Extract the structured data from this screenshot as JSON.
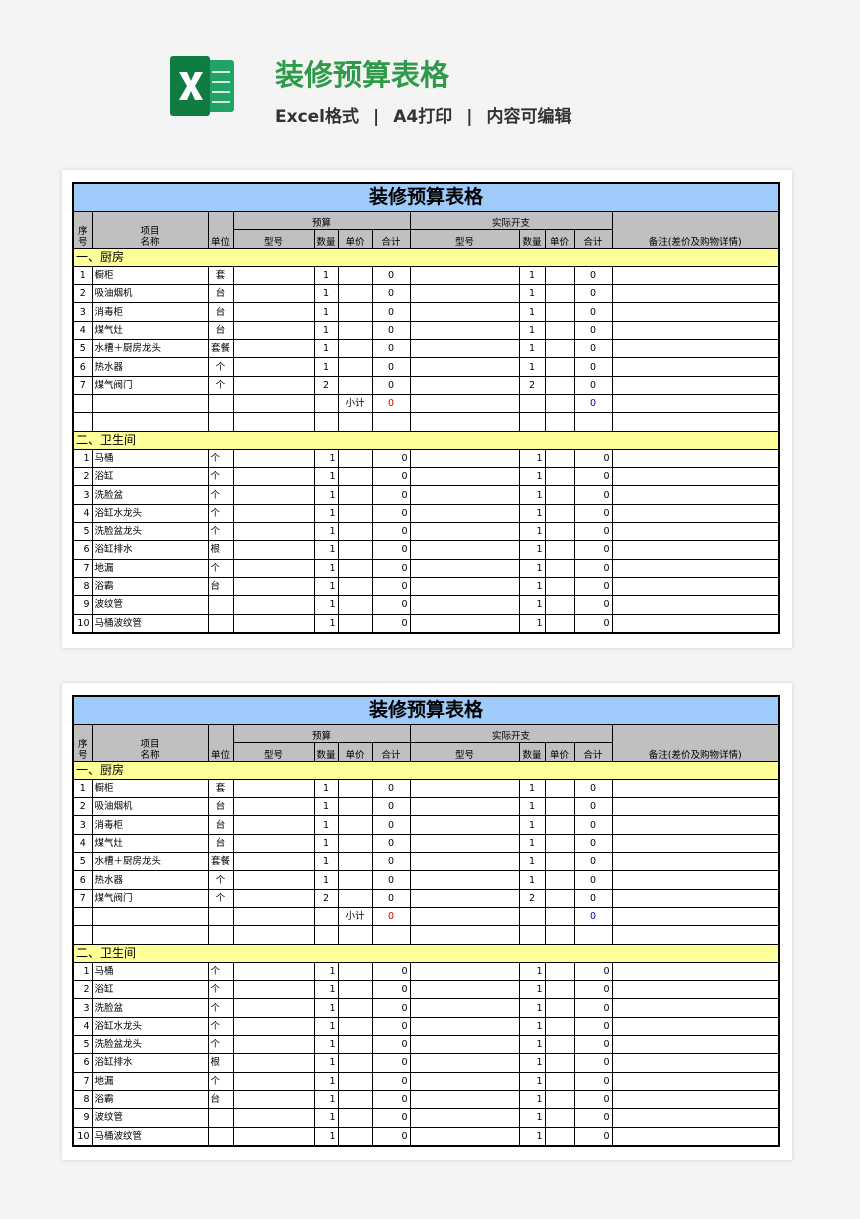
{
  "header": {
    "title": "装修预算表格",
    "tags": [
      "Excel格式",
      "A4打印",
      "内容可编辑"
    ],
    "separator": "|"
  },
  "sheets": [
    {
      "title": "装修预算表格",
      "header": {
        "seq": "序号",
        "item": [
          "项目",
          "名称"
        ],
        "unit": "单位",
        "budget": "预算",
        "actual": "实际开支",
        "notes": "备注(差价及购物详情)",
        "sub": [
          "型号",
          "数量",
          "单价",
          "合计",
          "型号",
          "数量",
          "单价",
          "合计"
        ]
      },
      "sections": [
        {
          "title": "一、厨房",
          "rows": [
            [
              1,
              "橱柜",
              "套",
              1,
              0,
              1,
              0
            ],
            [
              2,
              "吸油烟机",
              "台",
              1,
              0,
              1,
              0
            ],
            [
              3,
              "消毒柜",
              "台",
              1,
              0,
              1,
              0
            ],
            [
              4,
              "煤气灶",
              "台",
              1,
              0,
              1,
              0
            ],
            [
              5,
              "水槽＋厨房龙头",
              "套餐",
              1,
              0,
              1,
              0
            ],
            [
              6,
              "热水器",
              "个",
              1,
              0,
              1,
              0
            ],
            [
              7,
              "煤气阀门",
              "个",
              2,
              0,
              2,
              0
            ]
          ],
          "subtotal": {
            "label": "小计",
            "budget": 0,
            "actual": 0
          }
        },
        {
          "title": "二、卫生间",
          "rows": [
            [
              1,
              "马桶",
              "个",
              1,
              0,
              1,
              0
            ],
            [
              2,
              "浴缸",
              "个",
              1,
              0,
              1,
              0
            ],
            [
              3,
              "洗脸盆",
              "个",
              1,
              0,
              1,
              0
            ],
            [
              4,
              "浴缸水龙头",
              "个",
              1,
              0,
              1,
              0
            ],
            [
              5,
              "洗脸盆龙头",
              "个",
              1,
              0,
              1,
              0
            ],
            [
              6,
              "浴缸排水",
              "根",
              1,
              0,
              1,
              0
            ],
            [
              7,
              "地漏",
              "个",
              1,
              0,
              1,
              0
            ],
            [
              8,
              "浴霸",
              "台",
              1,
              0,
              1,
              0
            ],
            [
              9,
              "波纹管",
              null,
              1,
              0,
              1,
              0
            ],
            [
              10,
              "马桶波纹管",
              null,
              1,
              0,
              1,
              0
            ]
          ]
        }
      ]
    },
    {
      "title": "装修预算表格",
      "header": {
        "seq": "序号",
        "item": [
          "项目",
          "名称"
        ],
        "unit": "单位",
        "budget": "预算",
        "actual": "实际开支",
        "notes": "备注(差价及购物详情)",
        "sub": [
          "型号",
          "数量",
          "单价",
          "合计",
          "型号",
          "数量",
          "单价",
          "合计"
        ]
      },
      "sections": [
        {
          "title": "一、厨房",
          "rows": [
            [
              1,
              "橱柜",
              "套",
              1,
              0,
              1,
              0
            ],
            [
              2,
              "吸油烟机",
              "台",
              1,
              0,
              1,
              0
            ],
            [
              3,
              "消毒柜",
              "台",
              1,
              0,
              1,
              0
            ],
            [
              4,
              "煤气灶",
              "台",
              1,
              0,
              1,
              0
            ],
            [
              5,
              "水槽＋厨房龙头",
              "套餐",
              1,
              0,
              1,
              0
            ],
            [
              6,
              "热水器",
              "个",
              1,
              0,
              1,
              0
            ],
            [
              7,
              "煤气阀门",
              "个",
              2,
              0,
              2,
              0
            ]
          ],
          "subtotal": {
            "label": "小计",
            "budget": 0,
            "actual": 0
          }
        },
        {
          "title": "二、卫生间",
          "rows": [
            [
              1,
              "马桶",
              "个",
              1,
              0,
              1,
              0
            ],
            [
              2,
              "浴缸",
              "个",
              1,
              0,
              1,
              0
            ],
            [
              3,
              "洗脸盆",
              "个",
              1,
              0,
              1,
              0
            ],
            [
              4,
              "浴缸水龙头",
              "个",
              1,
              0,
              1,
              0
            ],
            [
              5,
              "洗脸盆龙头",
              "个",
              1,
              0,
              1,
              0
            ],
            [
              6,
              "浴缸排水",
              "根",
              1,
              0,
              1,
              0
            ],
            [
              7,
              "地漏",
              "个",
              1,
              0,
              1,
              0
            ],
            [
              8,
              "浴霸",
              "台",
              1,
              0,
              1,
              0
            ],
            [
              9,
              "波纹管",
              null,
              1,
              0,
              1,
              0
            ],
            [
              10,
              "马桶波纹管",
              null,
              1,
              0,
              1,
              0
            ]
          ]
        }
      ]
    }
  ]
}
